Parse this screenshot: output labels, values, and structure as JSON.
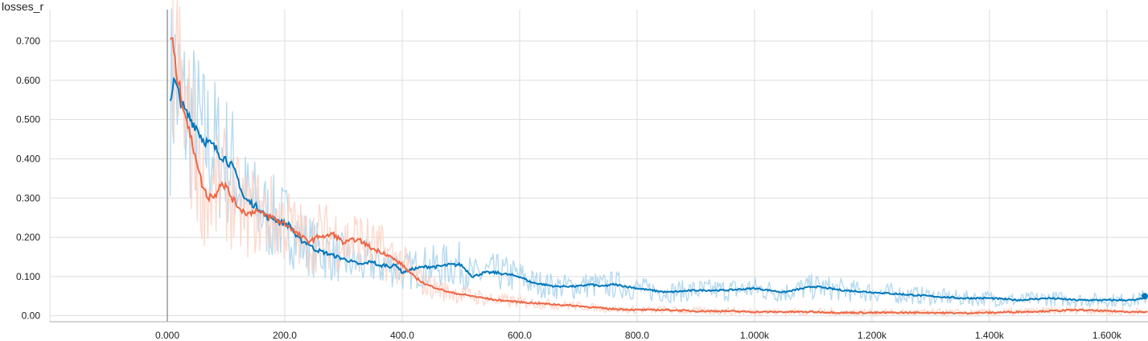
{
  "chart_data": {
    "type": "line",
    "title": "losses_r",
    "xlabel": "",
    "ylabel": "",
    "xlim": [
      -200,
      1670
    ],
    "ylim": [
      -0.015,
      0.78
    ],
    "x_ticks": [
      0,
      200,
      400,
      600,
      800,
      1000,
      1200,
      1400,
      1600
    ],
    "x_tick_labels": [
      "0.000",
      "200.0",
      "400.0",
      "600.0",
      "800.0",
      "1.000k",
      "1.200k",
      "1.400k",
      "1.600k"
    ],
    "y_ticks": [
      0,
      0.1,
      0.2,
      0.3,
      0.4,
      0.5,
      0.6,
      0.7
    ],
    "y_tick_labels": [
      "0.00",
      "0.100",
      "0.200",
      "0.300",
      "0.400",
      "0.500",
      "0.600",
      "0.700"
    ],
    "grid": true,
    "legend": "none",
    "colors": {
      "blue": "#0077bb",
      "blue_raw": "#a9d4ec",
      "orange": "#ee6644",
      "orange_raw": "#fbd2c6",
      "grid": "#dddddd",
      "zero_line": "#999999"
    },
    "series": [
      {
        "color": "#0077bb",
        "x": [
          5,
          12,
          20,
          30,
          40,
          50,
          60,
          70,
          80,
          90,
          100,
          110,
          120,
          130,
          140,
          150,
          160,
          170,
          180,
          190,
          200,
          210,
          220,
          230,
          240,
          250,
          260,
          270,
          280,
          290,
          300,
          310,
          320,
          330,
          340,
          350,
          360,
          370,
          380,
          390,
          400,
          420,
          440,
          460,
          480,
          500,
          520,
          540,
          560,
          580,
          600,
          620,
          640,
          660,
          680,
          700,
          720,
          740,
          760,
          780,
          800,
          850,
          900,
          950,
          1000,
          1050,
          1100,
          1150,
          1200,
          1250,
          1300,
          1350,
          1400,
          1450,
          1500,
          1550,
          1600,
          1650,
          1670
        ],
        "y": [
          0.555,
          0.6,
          0.56,
          0.52,
          0.5,
          0.48,
          0.45,
          0.44,
          0.43,
          0.41,
          0.4,
          0.38,
          0.35,
          0.3,
          0.29,
          0.28,
          0.27,
          0.25,
          0.25,
          0.24,
          0.235,
          0.23,
          0.2,
          0.19,
          0.185,
          0.17,
          0.165,
          0.16,
          0.155,
          0.15,
          0.145,
          0.14,
          0.135,
          0.13,
          0.135,
          0.14,
          0.125,
          0.13,
          0.125,
          0.13,
          0.11,
          0.12,
          0.125,
          0.125,
          0.13,
          0.13,
          0.1,
          0.11,
          0.11,
          0.105,
          0.1,
          0.085,
          0.08,
          0.075,
          0.075,
          0.075,
          0.08,
          0.075,
          0.08,
          0.075,
          0.07,
          0.06,
          0.065,
          0.065,
          0.07,
          0.06,
          0.075,
          0.065,
          0.06,
          0.055,
          0.05,
          0.045,
          0.045,
          0.04,
          0.045,
          0.04,
          0.04,
          0.04,
          0.05
        ]
      },
      {
        "color": "#ee6644",
        "x": [
          5,
          8,
          12,
          18,
          25,
          30,
          40,
          50,
          55,
          60,
          70,
          75,
          80,
          90,
          100,
          110,
          120,
          130,
          140,
          150,
          160,
          170,
          180,
          190,
          200,
          210,
          220,
          230,
          240,
          250,
          260,
          270,
          280,
          290,
          300,
          310,
          320,
          330,
          340,
          350,
          360,
          370,
          380,
          390,
          400,
          420,
          440,
          460,
          480,
          500,
          520,
          540,
          560,
          580,
          600,
          650,
          700,
          750,
          800,
          850,
          900,
          950,
          1000,
          1050,
          1100,
          1150,
          1200,
          1250,
          1300,
          1350,
          1400,
          1450,
          1500,
          1550,
          1600,
          1650,
          1670
        ],
        "y": [
          0.69,
          0.72,
          0.65,
          0.6,
          0.55,
          0.52,
          0.45,
          0.4,
          0.36,
          0.33,
          0.3,
          0.31,
          0.3,
          0.34,
          0.33,
          0.3,
          0.28,
          0.265,
          0.26,
          0.27,
          0.26,
          0.255,
          0.25,
          0.24,
          0.235,
          0.225,
          0.21,
          0.2,
          0.19,
          0.195,
          0.205,
          0.2,
          0.21,
          0.2,
          0.185,
          0.19,
          0.195,
          0.19,
          0.18,
          0.17,
          0.165,
          0.16,
          0.15,
          0.14,
          0.13,
          0.1,
          0.08,
          0.07,
          0.06,
          0.055,
          0.05,
          0.045,
          0.04,
          0.038,
          0.035,
          0.03,
          0.025,
          0.018,
          0.015,
          0.015,
          0.012,
          0.012,
          0.01,
          0.01,
          0.01,
          0.008,
          0.008,
          0.008,
          0.008,
          0.007,
          0.008,
          0.01,
          0.012,
          0.015,
          0.012,
          0.01,
          0.01
        ]
      }
    ]
  }
}
